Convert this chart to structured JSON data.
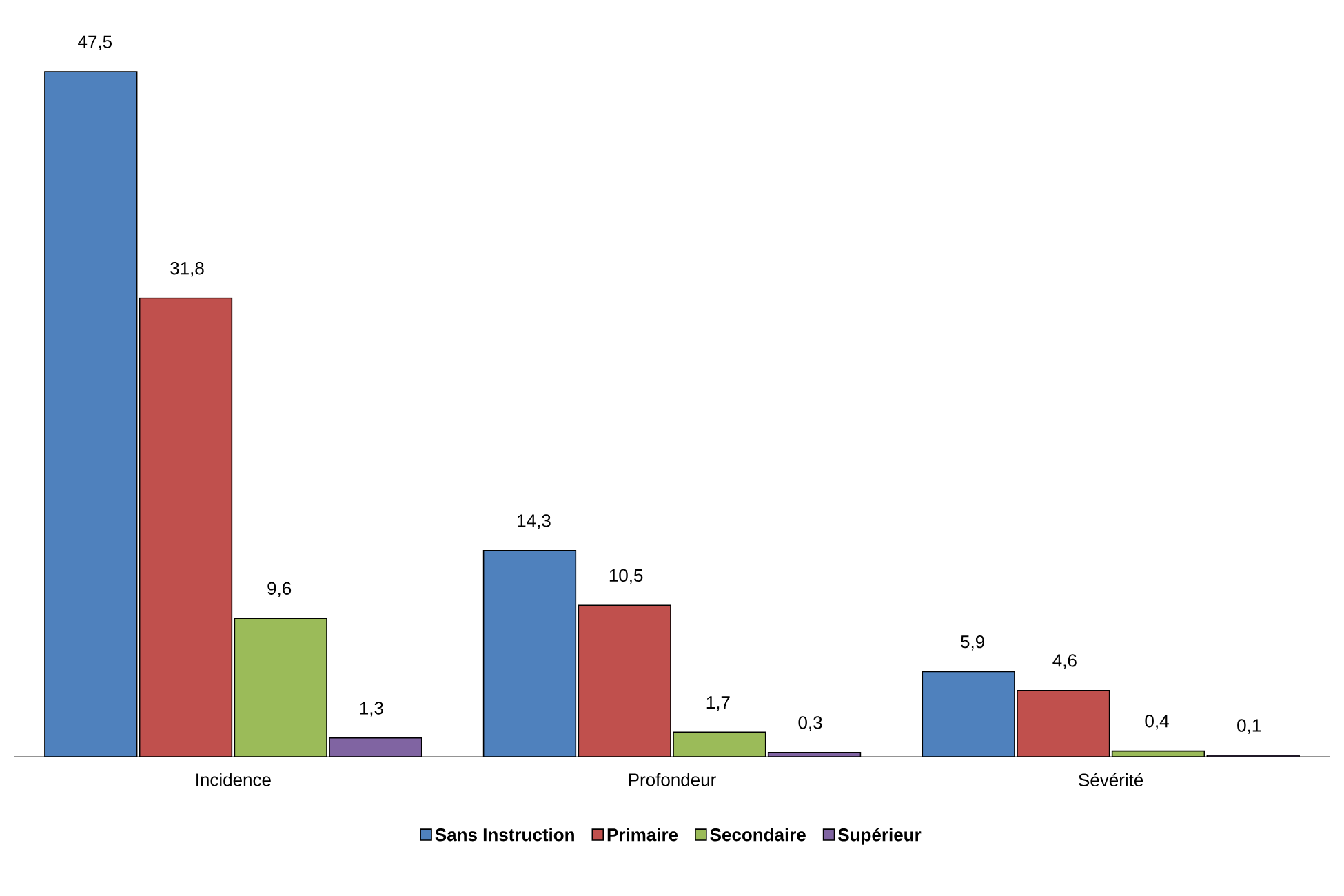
{
  "chart_data": {
    "type": "bar",
    "categories": [
      "Incidence",
      "Profondeur",
      "Sévérité"
    ],
    "series": [
      {
        "name": "Sans Instruction",
        "color": "#4f81bd",
        "values": [
          47.5,
          14.3,
          5.9
        ],
        "value_labels": [
          "47,5",
          "14,3",
          "5,9"
        ]
      },
      {
        "name": "Primaire",
        "color": "#c0504d",
        "values": [
          31.8,
          10.5,
          4.6
        ],
        "value_labels": [
          "31,8",
          "10,5",
          "4,6"
        ]
      },
      {
        "name": "Secondaire",
        "color": "#9bbb59",
        "values": [
          9.6,
          1.7,
          0.4
        ],
        "value_labels": [
          "9,6",
          "1,7",
          "0,4"
        ]
      },
      {
        "name": "Supérieur",
        "color": "#8064a2",
        "values": [
          1.3,
          0.3,
          0.1
        ],
        "value_labels": [
          "1,3",
          "0,3",
          "0,1"
        ]
      }
    ],
    "legend": "bottom",
    "grid": false
  }
}
